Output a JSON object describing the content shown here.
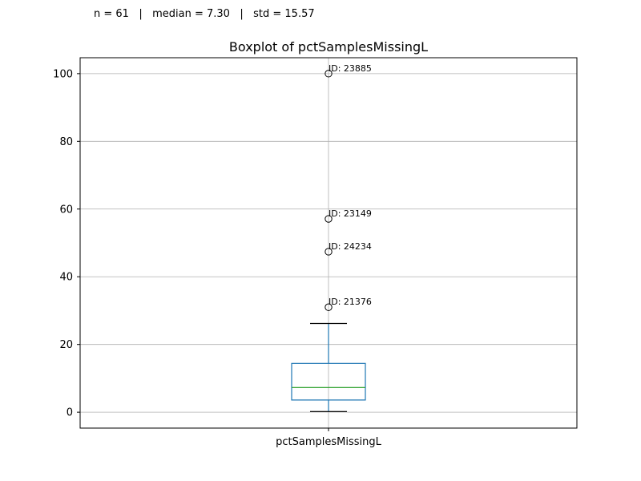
{
  "stats_text": "n = 61   |   median = 7.30   |   std = 15.57",
  "chart_data": {
    "type": "box",
    "title": "Boxplot of pctSamplesMissingL",
    "xlabel": "",
    "ylabel": "",
    "categories": [
      "pctSamplesMissingL"
    ],
    "ylim": [
      -4.7,
      104.7
    ],
    "yticks": [
      0,
      20,
      40,
      60,
      80,
      100
    ],
    "grid": true,
    "box": {
      "whisker_low": 0.2,
      "q1": 3.6,
      "median": 7.3,
      "q3": 14.4,
      "whisker_high": 26.2
    },
    "outliers": [
      {
        "value": 100.0,
        "label": "ID: 23885"
      },
      {
        "value": 57.1,
        "label": "ID: 23149"
      },
      {
        "value": 47.4,
        "label": "ID: 24234"
      },
      {
        "value": 31.0,
        "label": "ID: 21376"
      }
    ],
    "colors": {
      "box": "#1f77b4",
      "median": "#2ca02c",
      "whisker_cap": "#000000",
      "grid": "#b0b0b0"
    }
  }
}
